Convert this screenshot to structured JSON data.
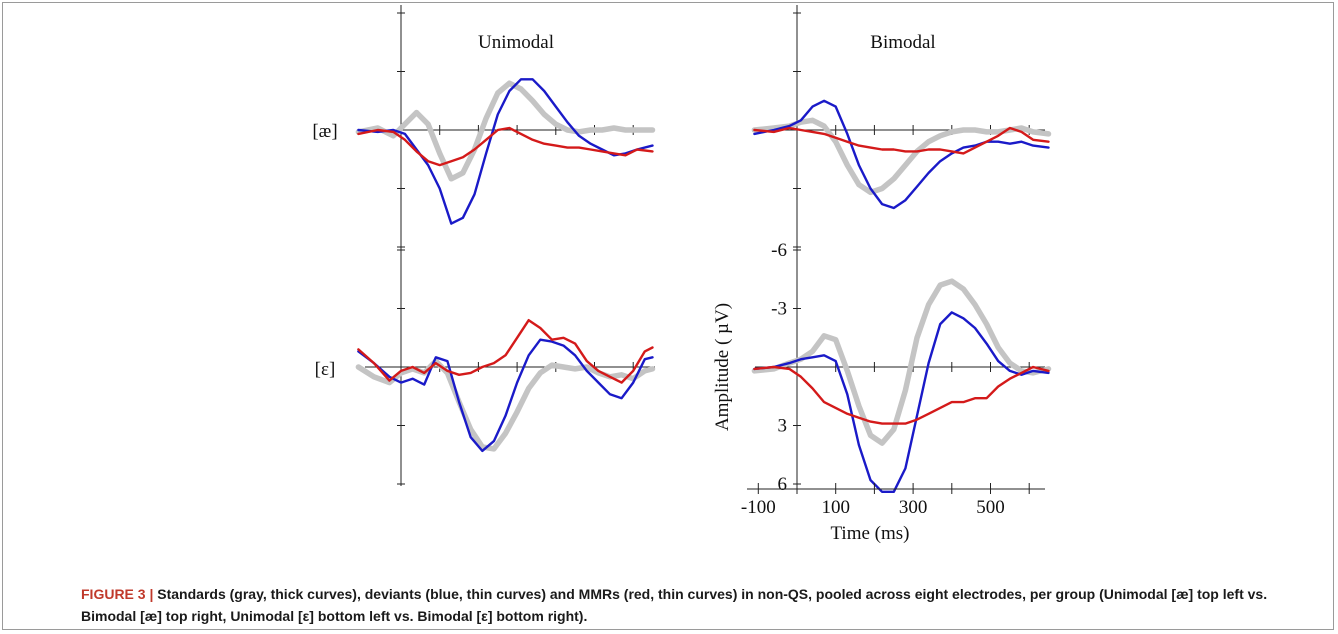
{
  "figure": {
    "panel_titles": {
      "left": "Unimodal",
      "right": "Bimodal"
    },
    "row_labels": {
      "top": "[æ]",
      "bottom": "[ε]"
    },
    "caption": {
      "lead": "FIGURE 3 | ",
      "text": "Standards (gray, thick curves), deviants (blue, thin curves) and MMRs (red, thin curves) in non-QS, pooled across eight electrodes, per group (Unimodal [æ] top left vs. Bimodal [æ] top right, Unimodal [ε] bottom left vs. Bimodal [ε] bottom right)."
    },
    "colors": {
      "standard": "#c4c4c4",
      "deviant": "#1a1ac8",
      "mmr": "#d41a1a",
      "axis": "#222222"
    }
  },
  "chart_data": [
    {
      "type": "line",
      "panel": "Unimodal [æ]",
      "xlim": [
        -100,
        650
      ],
      "ylim": [
        -6,
        6
      ],
      "y_inverted": true,
      "series": [
        {
          "key": "standard",
          "x": [
            -110,
            -60,
            -20,
            10,
            40,
            70,
            100,
            130,
            160,
            190,
            220,
            250,
            280,
            310,
            340,
            370,
            400,
            430,
            460,
            490,
            520,
            550,
            580,
            610,
            650
          ],
          "y": [
            0.1,
            -0.1,
            0.3,
            -0.3,
            -0.9,
            -0.3,
            1.2,
            2.5,
            2.2,
            1.0,
            -0.6,
            -1.9,
            -2.4,
            -2.1,
            -1.5,
            -0.8,
            -0.3,
            0.0,
            0.1,
            0.0,
            0.0,
            -0.1,
            0.0,
            0.0,
            0.0
          ]
        },
        {
          "key": "deviant",
          "x": [
            -110,
            -60,
            -20,
            10,
            40,
            70,
            100,
            130,
            160,
            190,
            220,
            250,
            280,
            310,
            340,
            370,
            400,
            430,
            460,
            490,
            520,
            550,
            580,
            610,
            650
          ],
          "y": [
            0.0,
            0.1,
            0.0,
            0.2,
            1.0,
            1.8,
            3.0,
            4.8,
            4.5,
            3.3,
            1.2,
            -0.8,
            -2.0,
            -2.6,
            -2.6,
            -2.0,
            -1.2,
            -0.4,
            0.3,
            0.7,
            1.0,
            1.3,
            1.2,
            1.0,
            0.8
          ]
        },
        {
          "key": "mmr",
          "x": [
            -110,
            -60,
            -20,
            10,
            40,
            70,
            100,
            130,
            160,
            190,
            220,
            250,
            280,
            310,
            340,
            370,
            400,
            430,
            460,
            490,
            520,
            550,
            580,
            610,
            650
          ],
          "y": [
            0.2,
            0.0,
            0.1,
            0.5,
            1.1,
            1.6,
            1.8,
            1.6,
            1.4,
            1.0,
            0.5,
            0.0,
            -0.1,
            0.2,
            0.5,
            0.7,
            0.8,
            0.9,
            0.9,
            1.0,
            1.1,
            1.2,
            1.3,
            1.0,
            1.1
          ]
        }
      ]
    },
    {
      "type": "line",
      "panel": "Bimodal [æ]",
      "xlim": [
        -100,
        650
      ],
      "ylim": [
        -6,
        6
      ],
      "y_inverted": true,
      "series": [
        {
          "key": "standard",
          "x": [
            -110,
            -60,
            -20,
            10,
            40,
            70,
            100,
            130,
            160,
            190,
            220,
            250,
            280,
            310,
            340,
            370,
            400,
            430,
            460,
            490,
            520,
            550,
            580,
            610,
            650
          ],
          "y": [
            0.0,
            -0.1,
            -0.2,
            -0.4,
            -0.5,
            -0.2,
            0.6,
            1.8,
            2.8,
            3.2,
            3.0,
            2.5,
            1.8,
            1.1,
            0.6,
            0.3,
            0.1,
            0.0,
            0.0,
            0.1,
            0.1,
            0.0,
            -0.1,
            0.1,
            0.2
          ]
        },
        {
          "key": "deviant",
          "x": [
            -110,
            -60,
            -20,
            10,
            40,
            70,
            100,
            130,
            160,
            190,
            220,
            250,
            280,
            310,
            340,
            370,
            400,
            430,
            460,
            490,
            520,
            550,
            580,
            610,
            650
          ],
          "y": [
            0.2,
            0.0,
            -0.2,
            -0.5,
            -1.2,
            -1.5,
            -1.2,
            0.2,
            1.8,
            3.0,
            3.8,
            4.0,
            3.6,
            2.9,
            2.2,
            1.6,
            1.2,
            0.9,
            0.8,
            0.6,
            0.6,
            0.7,
            0.6,
            0.8,
            0.9
          ]
        },
        {
          "key": "mmr",
          "x": [
            -110,
            -60,
            -20,
            10,
            40,
            70,
            100,
            130,
            160,
            190,
            220,
            250,
            280,
            310,
            340,
            370,
            400,
            430,
            460,
            490,
            520,
            550,
            580,
            610,
            650
          ],
          "y": [
            0.0,
            0.1,
            -0.1,
            0.0,
            0.1,
            0.2,
            0.4,
            0.6,
            0.8,
            0.9,
            1.0,
            1.0,
            1.1,
            1.1,
            1.0,
            1.0,
            1.1,
            1.2,
            0.9,
            0.6,
            0.3,
            -0.1,
            0.1,
            0.5,
            0.6
          ]
        }
      ]
    },
    {
      "type": "line",
      "panel": "Unimodal [ε]",
      "xlim": [
        -100,
        650
      ],
      "ylim": [
        -6,
        6
      ],
      "y_inverted": true,
      "series": [
        {
          "key": "standard",
          "x": [
            -110,
            -70,
            -30,
            0,
            30,
            60,
            90,
            120,
            150,
            180,
            210,
            240,
            270,
            300,
            330,
            360,
            390,
            420,
            450,
            480,
            510,
            540,
            570,
            600,
            630,
            650
          ],
          "y": [
            0.0,
            0.5,
            0.8,
            0.3,
            0.1,
            0.3,
            -0.3,
            0.3,
            1.8,
            3.2,
            4.1,
            4.2,
            3.4,
            2.3,
            1.1,
            0.3,
            -0.1,
            0.0,
            0.1,
            0.0,
            0.3,
            0.5,
            0.4,
            0.6,
            0.2,
            0.1
          ]
        },
        {
          "key": "deviant",
          "x": [
            -110,
            -70,
            -30,
            0,
            30,
            60,
            90,
            120,
            150,
            180,
            210,
            240,
            270,
            300,
            330,
            360,
            390,
            420,
            450,
            480,
            510,
            540,
            570,
            600,
            630,
            650
          ],
          "y": [
            -0.8,
            -0.2,
            0.5,
            0.8,
            0.6,
            0.9,
            -0.5,
            -0.3,
            1.8,
            3.6,
            4.3,
            3.8,
            2.5,
            0.8,
            -0.6,
            -1.4,
            -1.3,
            -1.1,
            -0.6,
            0.2,
            0.8,
            1.4,
            1.6,
            0.8,
            -0.4,
            -0.5
          ]
        },
        {
          "key": "mmr",
          "x": [
            -110,
            -70,
            -30,
            0,
            30,
            60,
            90,
            120,
            150,
            180,
            210,
            240,
            270,
            300,
            330,
            360,
            390,
            420,
            450,
            480,
            510,
            540,
            570,
            600,
            630,
            650
          ],
          "y": [
            -0.9,
            -0.2,
            0.7,
            0.2,
            0.0,
            0.3,
            -0.2,
            0.2,
            0.4,
            0.3,
            0.0,
            -0.2,
            -0.6,
            -1.5,
            -2.4,
            -2.0,
            -1.4,
            -1.5,
            -1.2,
            -0.3,
            0.2,
            0.5,
            0.8,
            0.2,
            -0.8,
            -1.0
          ]
        }
      ]
    },
    {
      "type": "line",
      "panel": "Bimodal [ε]",
      "xlim": [
        -100,
        650
      ],
      "ylim": [
        -6,
        6
      ],
      "y_inverted": true,
      "xlabel": "Time (ms)",
      "ylabel": "Amplitude ( µV)",
      "xticks": [
        -100,
        100,
        300,
        500
      ],
      "yticks": [
        -6,
        -3,
        3,
        6
      ],
      "series": [
        {
          "key": "standard",
          "x": [
            -110,
            -60,
            -20,
            10,
            40,
            70,
            100,
            130,
            160,
            190,
            220,
            250,
            280,
            310,
            340,
            370,
            400,
            430,
            460,
            490,
            520,
            550,
            580,
            610,
            650
          ],
          "y": [
            0.2,
            0.1,
            -0.2,
            -0.4,
            -0.8,
            -1.6,
            -1.4,
            0.2,
            2.0,
            3.5,
            3.9,
            3.2,
            1.2,
            -1.5,
            -3.2,
            -4.2,
            -4.4,
            -4.0,
            -3.2,
            -2.2,
            -1.0,
            -0.2,
            0.2,
            0.3,
            0.1
          ]
        },
        {
          "key": "deviant",
          "x": [
            -110,
            -60,
            -20,
            10,
            40,
            70,
            100,
            130,
            160,
            190,
            220,
            250,
            280,
            310,
            340,
            370,
            400,
            430,
            460,
            490,
            520,
            550,
            580,
            610,
            650
          ],
          "y": [
            0.1,
            0.0,
            -0.2,
            -0.4,
            -0.5,
            -0.6,
            -0.3,
            1.4,
            4.0,
            5.8,
            6.4,
            6.4,
            5.2,
            2.5,
            -0.2,
            -2.2,
            -2.8,
            -2.5,
            -2.0,
            -1.2,
            -0.3,
            0.2,
            0.4,
            0.2,
            0.3
          ]
        },
        {
          "key": "mmr",
          "x": [
            -110,
            -60,
            -20,
            10,
            40,
            70,
            100,
            130,
            160,
            190,
            220,
            250,
            280,
            310,
            340,
            370,
            400,
            430,
            460,
            490,
            520,
            550,
            580,
            610,
            650
          ],
          "y": [
            0.1,
            0.0,
            0.1,
            0.5,
            1.1,
            1.8,
            2.1,
            2.4,
            2.6,
            2.8,
            2.9,
            2.9,
            2.9,
            2.7,
            2.4,
            2.1,
            1.8,
            1.8,
            1.6,
            1.6,
            1.0,
            0.6,
            0.3,
            0.0,
            0.2
          ]
        }
      ]
    }
  ]
}
